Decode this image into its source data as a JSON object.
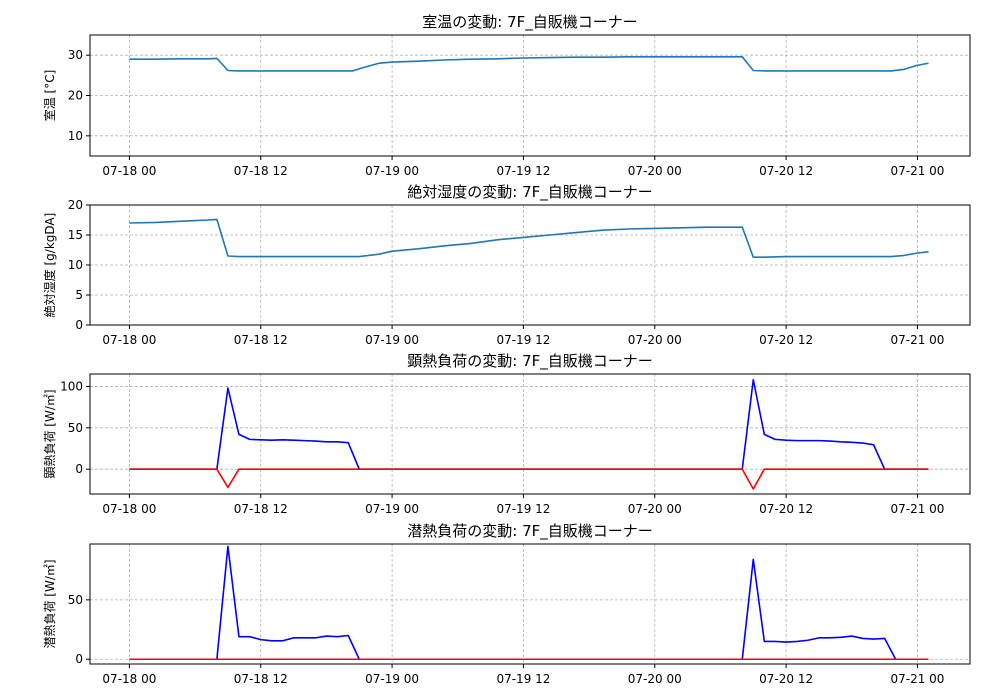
{
  "chart_data": [
    {
      "type": "line",
      "title": "室温の変動: 7F_自販機コーナー",
      "xlabel": "",
      "ylabel": "室温 [°C]",
      "xlim": [
        -0.15,
        3.2
      ],
      "ylim": [
        5,
        35
      ],
      "yticks": [
        10,
        20,
        30
      ],
      "xticks": [
        0,
        0.5,
        1,
        1.5,
        2,
        2.5,
        3
      ],
      "xtick_labels": [
        "07-18 00",
        "07-18 12",
        "07-19 00",
        "07-19 12",
        "07-20 00",
        "07-20 12",
        "07-21 00"
      ],
      "grid": true,
      "series": [
        {
          "name": "",
          "color": "#1f77b4",
          "x": [
            0,
            0.1,
            0.2,
            0.3,
            0.333,
            0.375,
            0.417,
            0.458,
            0.5,
            0.55,
            0.6,
            0.65,
            0.7,
            0.75,
            0.8,
            0.85,
            0.875,
            0.9,
            0.95,
            1.0,
            1.1,
            1.2,
            1.3,
            1.4,
            1.5,
            1.6,
            1.7,
            1.8,
            1.9,
            2.0,
            2.1,
            2.2,
            2.3,
            2.333,
            2.375,
            2.417,
            2.5,
            2.6,
            2.7,
            2.8,
            2.85,
            2.875,
            2.9,
            2.95,
            3.0,
            3.042
          ],
          "y": [
            29,
            29,
            29.1,
            29.1,
            29.2,
            26.2,
            26.1,
            26.1,
            26.1,
            26.1,
            26.1,
            26.1,
            26.1,
            26.1,
            26.1,
            26.1,
            26.6,
            27.1,
            28.0,
            28.3,
            28.5,
            28.8,
            29.0,
            29.1,
            29.3,
            29.4,
            29.5,
            29.5,
            29.6,
            29.6,
            29.6,
            29.6,
            29.6,
            29.6,
            26.2,
            26.1,
            26.1,
            26.1,
            26.1,
            26.1,
            26.1,
            26.1,
            26.1,
            26.5,
            27.5,
            28.0
          ]
        }
      ]
    },
    {
      "type": "line",
      "title": "絶対湿度の変動: 7F_自販機コーナー",
      "xlabel": "",
      "ylabel": "絶対湿度 [g/kgDA]",
      "xlim": [
        -0.15,
        3.2
      ],
      "ylim": [
        0,
        20
      ],
      "yticks": [
        0,
        5,
        10,
        15,
        20
      ],
      "xticks": [
        0,
        0.5,
        1,
        1.5,
        2,
        2.5,
        3
      ],
      "xtick_labels": [
        "07-18 00",
        "07-18 12",
        "07-19 00",
        "07-19 12",
        "07-20 00",
        "07-20 12",
        "07-21 00"
      ],
      "grid": true,
      "series": [
        {
          "name": "",
          "color": "#1f77b4",
          "x": [
            0,
            0.1,
            0.2,
            0.3,
            0.333,
            0.375,
            0.417,
            0.5,
            0.6,
            0.7,
            0.8,
            0.875,
            0.95,
            1.0,
            1.1,
            1.2,
            1.3,
            1.4,
            1.5,
            1.6,
            1.7,
            1.8,
            1.9,
            2.0,
            2.1,
            2.2,
            2.3,
            2.333,
            2.375,
            2.417,
            2.5,
            2.6,
            2.7,
            2.8,
            2.85,
            2.875,
            2.9,
            2.95,
            3.0,
            3.042
          ],
          "y": [
            17.0,
            17.1,
            17.3,
            17.5,
            17.6,
            11.5,
            11.4,
            11.4,
            11.4,
            11.4,
            11.4,
            11.4,
            11.8,
            12.3,
            12.7,
            13.2,
            13.6,
            14.2,
            14.6,
            15.0,
            15.4,
            15.8,
            16.0,
            16.1,
            16.2,
            16.3,
            16.3,
            16.3,
            11.3,
            11.3,
            11.4,
            11.4,
            11.4,
            11.4,
            11.4,
            11.4,
            11.4,
            11.6,
            12.0,
            12.2
          ]
        }
      ]
    },
    {
      "type": "line",
      "title": "顕熱負荷の変動: 7F_自販機コーナー",
      "xlabel": "",
      "ylabel": "顕熱負荷 [W/㎡]",
      "xlim": [
        -0.15,
        3.2
      ],
      "ylim": [
        -30,
        115
      ],
      "yticks": [
        0,
        50,
        100
      ],
      "xticks": [
        0,
        0.5,
        1,
        1.5,
        2,
        2.5,
        3
      ],
      "xtick_labels": [
        "07-18 00",
        "07-18 12",
        "07-19 00",
        "07-19 12",
        "07-20 00",
        "07-20 12",
        "07-21 00"
      ],
      "grid": true,
      "series": [
        {
          "name": "",
          "color": "#0000ff",
          "x": [
            0,
            0.292,
            0.333,
            0.375,
            0.417,
            0.458,
            0.5,
            0.542,
            0.583,
            0.625,
            0.667,
            0.708,
            0.75,
            0.792,
            0.833,
            0.875,
            1.0,
            1.5,
            2.0,
            2.25,
            2.333,
            2.375,
            2.417,
            2.458,
            2.5,
            2.542,
            2.583,
            2.625,
            2.667,
            2.708,
            2.75,
            2.792,
            2.833,
            2.875,
            2.917,
            3.042
          ],
          "y": [
            0,
            0,
            0,
            98,
            42,
            36,
            35.5,
            35,
            35.5,
            35,
            34.5,
            34,
            33,
            33,
            32,
            0,
            0,
            0,
            0,
            0,
            0,
            108,
            42,
            36,
            35,
            34.5,
            34.5,
            34.5,
            34,
            33,
            32.5,
            31.5,
            29.5,
            0,
            0,
            0
          ]
        },
        {
          "name": "",
          "color": "#ff0000",
          "x": [
            0,
            0.292,
            0.333,
            0.375,
            0.417,
            0.458,
            1.0,
            1.5,
            2.0,
            2.25,
            2.333,
            2.375,
            2.417,
            2.458,
            3.042
          ],
          "y": [
            0,
            0,
            0,
            -22,
            0,
            0,
            0,
            0,
            0,
            0,
            0,
            -24,
            0,
            0,
            0
          ]
        }
      ]
    },
    {
      "type": "line",
      "title": "潜熱負荷の変動: 7F_自販機コーナー",
      "xlabel": "",
      "ylabel": "潜熱負荷 [W/㎡]",
      "xlim": [
        -0.15,
        3.2
      ],
      "ylim": [
        -4,
        97
      ],
      "yticks": [
        0,
        50
      ],
      "xticks": [
        0,
        0.5,
        1,
        1.5,
        2,
        2.5,
        3
      ],
      "xtick_labels": [
        "07-18 00",
        "07-18 12",
        "07-19 00",
        "07-19 12",
        "07-20 00",
        "07-20 12",
        "07-21 00"
      ],
      "grid": true,
      "series": [
        {
          "name": "",
          "color": "#0000ff",
          "x": [
            0,
            0.292,
            0.333,
            0.375,
            0.417,
            0.458,
            0.5,
            0.542,
            0.583,
            0.625,
            0.667,
            0.708,
            0.75,
            0.792,
            0.833,
            0.875,
            1.0,
            1.5,
            2.0,
            2.25,
            2.333,
            2.375,
            2.417,
            2.458,
            2.5,
            2.542,
            2.583,
            2.625,
            2.667,
            2.708,
            2.75,
            2.792,
            2.833,
            2.875,
            2.917,
            3.042
          ],
          "y": [
            0,
            0,
            0,
            95,
            19,
            19,
            16.5,
            15.5,
            15.5,
            18,
            18,
            18,
            19.5,
            19,
            20,
            0,
            0,
            0,
            0,
            0,
            0,
            84,
            15,
            15,
            14.5,
            15,
            16,
            18,
            18,
            18.5,
            19.5,
            17.5,
            17,
            17.5,
            0,
            0
          ]
        },
        {
          "name": "",
          "color": "#ff0000",
          "x": [
            0,
            1.0,
            2.0,
            3.042
          ],
          "y": [
            0,
            0,
            0,
            0
          ]
        }
      ]
    }
  ]
}
